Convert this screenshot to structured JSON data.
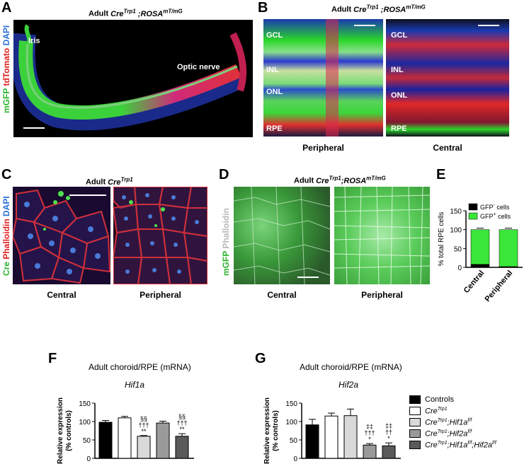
{
  "panels": {
    "A": {
      "letter": "A",
      "title_pre": "Adult ",
      "title_cre": "Cre",
      "title_cre_sup": "Trp1",
      "title_mid": " ;ROSA",
      "title_rosa_sup": "mT/mG",
      "label_iris": "Iris",
      "label_optic": "Optic nerve",
      "ylabel_1": "mGFP",
      "ylabel_2": " tdTomato",
      "ylabel_3": " DAPI"
    },
    "B": {
      "letter": "B",
      "title_pre": "Adult ",
      "title_cre": "Cre",
      "title_cre_sup": "Trp1",
      "title_mid": " ;ROSA",
      "title_rosa_sup": "mT/mG",
      "layers": [
        "GCL",
        "INL",
        "ONL",
        "RPE"
      ],
      "left_caption": "Peripheral",
      "right_caption": "Central"
    },
    "C": {
      "letter": "C",
      "title_pre": "Adult ",
      "title_cre": "Cre",
      "title_cre_sup": "Trp1",
      "ylabel_1": "Cre",
      "ylabel_2": " Phalloidin",
      "ylabel_3": " DAPI",
      "left_caption": "Central",
      "right_caption": "Peripheral"
    },
    "D": {
      "letter": "D",
      "title_pre": "Adult ",
      "title_cre": "Cre",
      "title_cre_sup": "Trp1",
      "title_mid": ";ROSA",
      "title_rosa_sup": "mT/mG",
      "ylabel_1": "mGFP",
      "ylabel_2": " Phalloidin",
      "left_caption": "Central",
      "right_caption": "Peripheral"
    },
    "E": {
      "letter": "E"
    },
    "F": {
      "letter": "F",
      "heading": "Adult choroid/RPE (mRNA)",
      "gene": "Hif1a"
    },
    "G": {
      "letter": "G",
      "heading": "Adult choroid/RPE (mRNA)",
      "gene": "Hif2a"
    }
  },
  "legend": {
    "entries": [
      {
        "color": "#000000",
        "text": "Controls",
        "sup": "",
        "suffix": "",
        "suffix_sup": ""
      },
      {
        "color": "#ffffff",
        "text": "Cre",
        "sup": "Trp1",
        "suffix": "",
        "suffix_sup": ""
      },
      {
        "color": "#d9d9d9",
        "text": "Cre",
        "sup": "Trp1",
        "suffix": ";Hif1a",
        "suffix_sup": "f/f"
      },
      {
        "color": "#9a9a9a",
        "text": "Cre",
        "sup": "Trp1",
        "suffix": ";Hif2a",
        "suffix_sup": "f/f"
      },
      {
        "color": "#5a5a5a",
        "text": "Cre",
        "sup": "Trp1",
        "suffix": ";Hif1a",
        "suffix_sup": "f/f",
        "suffix2": ";Hif2a",
        "suffix2_sup": "f/f"
      }
    ]
  },
  "chart_data": [
    {
      "panel": "E",
      "type": "bar",
      "stacked": true,
      "categories": [
        "Central",
        "Peripheral"
      ],
      "ylabel": "% total RPE cells",
      "ylim": [
        0,
        150
      ],
      "yticks": [
        0,
        50,
        100,
        150
      ],
      "series": [
        {
          "name": "GFP⁻ cells",
          "color": "#000000",
          "values": [
            8,
            2
          ]
        },
        {
          "name": "GFP⁺ cells",
          "color": "#39e639",
          "values": [
            92,
            98
          ]
        }
      ],
      "legend": [
        {
          "text": "GFP",
          "sup": "-",
          "tail": " cells"
        },
        {
          "text": "GFP",
          "sup": "+",
          "tail": " cells"
        }
      ]
    },
    {
      "panel": "F",
      "type": "bar",
      "title": "Hif1a",
      "ylabel": "Relative expression\n(% controls)",
      "ylim": [
        0,
        150
      ],
      "yticks": [
        0,
        50,
        100,
        150
      ],
      "values": [
        98,
        110,
        60,
        96,
        60
      ],
      "errors": [
        5,
        4,
        2,
        5,
        7
      ],
      "colors": [
        "#000000",
        "#ffffff",
        "#d9d9d9",
        "#9a9a9a",
        "#5a5a5a"
      ],
      "annotations": [
        "",
        "",
        "§§|†††|**",
        "",
        "§§|†††|**"
      ]
    },
    {
      "panel": "G",
      "type": "bar",
      "title": "Hif2a",
      "ylabel": "Relative expression\n(% controls)",
      "ylim": [
        0,
        150
      ],
      "yticks": [
        0,
        50,
        100,
        150
      ],
      "values": [
        91,
        115,
        116,
        36,
        34
      ],
      "errors": [
        15,
        8,
        18,
        4,
        8
      ],
      "colors": [
        "#000000",
        "#ffffff",
        "#d9d9d9",
        "#9a9a9a",
        "#5a5a5a"
      ],
      "annotations": [
        "",
        "",
        "",
        "‡‡|†††|*",
        "‡‡|††|*"
      ]
    }
  ]
}
